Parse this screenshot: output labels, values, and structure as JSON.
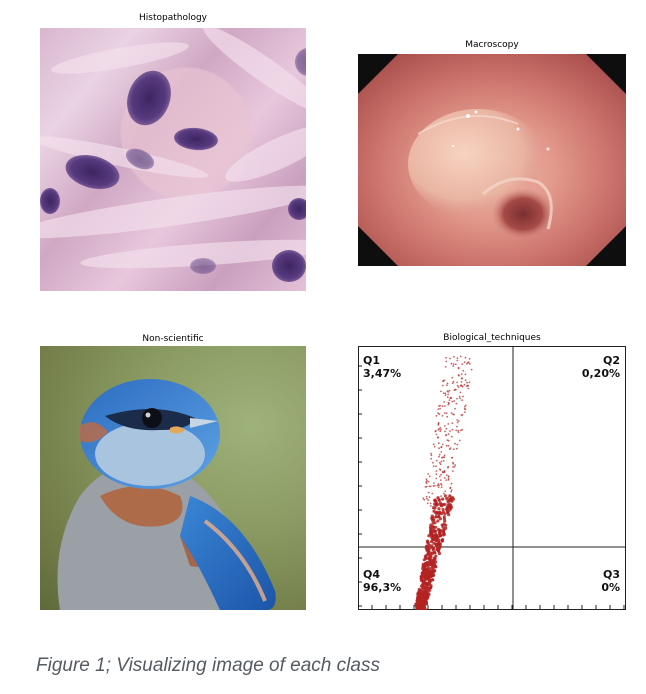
{
  "panels": {
    "histopathology": {
      "title": "Histopathology"
    },
    "macroscopy": {
      "title": "Macroscopy"
    },
    "non_scientific": {
      "title": "Non-scientific"
    },
    "biological_techniques": {
      "title": "Biological_techniques",
      "quadrants": {
        "q1": {
          "name": "Q1",
          "value": "3,47%"
        },
        "q2": {
          "name": "Q2",
          "value": "0,20%"
        },
        "q3": {
          "name": "Q3",
          "value": "0%"
        },
        "q4": {
          "name": "Q4",
          "value": "96,3%"
        }
      }
    }
  },
  "caption": "Figure 1; Visualizing image of each class",
  "colors": {
    "caption": "#555b62",
    "scatter_points": "#b42222",
    "tissue_pink": "#e3c1d8",
    "nuclei_purple": "#4a2f6e"
  }
}
